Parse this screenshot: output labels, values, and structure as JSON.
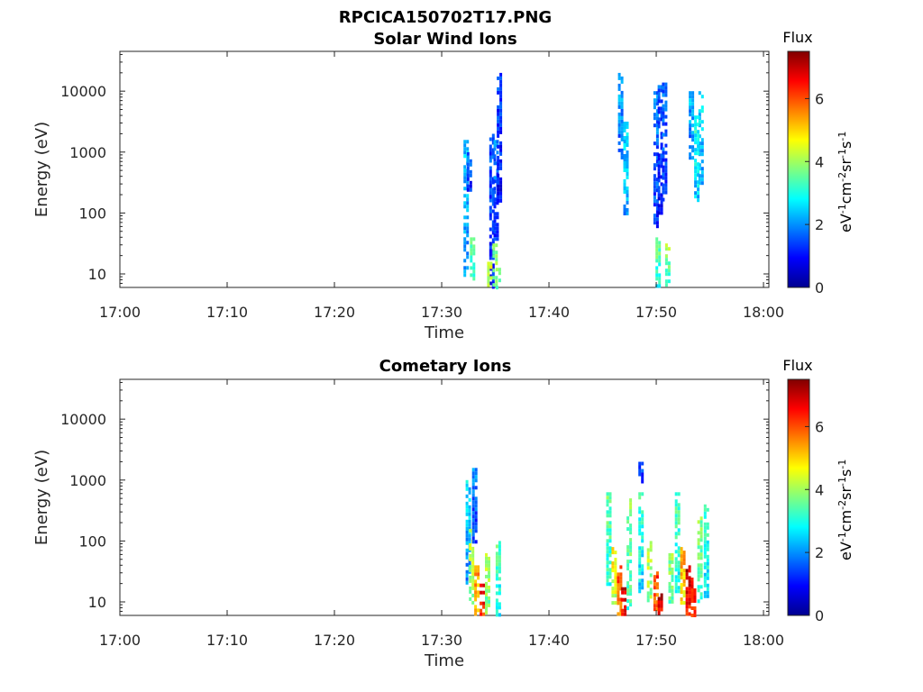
{
  "figure_title": "RPCICA150702T17.PNG",
  "colorbar": {
    "title": "Flux",
    "unit_parts": [
      "eV",
      "-1",
      "cm",
      "-2",
      "sr",
      "-1",
      "s",
      "-1"
    ],
    "ticks": [
      "0",
      "2",
      "4",
      "6"
    ],
    "tick_values": [
      0,
      2,
      4,
      6
    ],
    "range": [
      0,
      7.5
    ],
    "colormap": "jet"
  },
  "chart_data": [
    {
      "type": "heatmap",
      "title": "Solar Wind Ions",
      "xlabel": "Time",
      "ylabel": "Energy (eV)",
      "x_ticks": [
        "17:00",
        "17:10",
        "17:20",
        "17:30",
        "17:40",
        "17:50",
        "18:00"
      ],
      "x_tick_minutes": [
        0,
        10,
        20,
        30,
        40,
        50,
        60
      ],
      "xlim_minutes": [
        0,
        60.5
      ],
      "y_scale": "log",
      "y_ticks": [
        "10",
        "100",
        "1000",
        "10000"
      ],
      "y_tick_values": [
        10,
        100,
        1000,
        10000
      ],
      "ylim": [
        6,
        45000
      ],
      "grid": false,
      "cells_note": "flux heatmap; each row = [minute after 17:00, log10 energy low, log10 energy high, flux]",
      "cells": [
        [
          34.6,
          0.8,
          3.3,
          1.0
        ],
        [
          35.0,
          1.6,
          3.2,
          1.3
        ],
        [
          35.3,
          2.2,
          4.3,
          0.9
        ],
        [
          32.2,
          1.0,
          3.2,
          1.9
        ],
        [
          32.8,
          0.9,
          1.6,
          3.0
        ],
        [
          34.9,
          0.8,
          1.5,
          3.4
        ],
        [
          34.4,
          0.8,
          1.2,
          4.0
        ],
        [
          35.2,
          0.8,
          1.1,
          3.0
        ],
        [
          32.5,
          2.4,
          3.0,
          1.1
        ],
        [
          46.6,
          2.9,
          4.3,
          1.6
        ],
        [
          47.1,
          2.0,
          3.5,
          2.0
        ],
        [
          49.9,
          1.8,
          4.0,
          1.3
        ],
        [
          50.3,
          2.0,
          4.1,
          1.0
        ],
        [
          50.7,
          2.2,
          4.2,
          1.2
        ],
        [
          50.1,
          0.8,
          1.6,
          3.0
        ],
        [
          51.0,
          0.8,
          1.5,
          3.3
        ],
        [
          53.2,
          2.9,
          4.0,
          1.7
        ],
        [
          54.1,
          2.5,
          4.0,
          2.1
        ],
        [
          53.7,
          2.2,
          3.6,
          2.4
        ]
      ]
    },
    {
      "type": "heatmap",
      "title": "Cometary Ions",
      "xlabel": "Time",
      "ylabel": "Energy (eV)",
      "x_ticks": [
        "17:00",
        "17:10",
        "17:20",
        "17:30",
        "17:40",
        "17:50",
        "18:00"
      ],
      "x_tick_minutes": [
        0,
        10,
        20,
        30,
        40,
        50,
        60
      ],
      "xlim_minutes": [
        0,
        60.5
      ],
      "y_scale": "log",
      "y_ticks": [
        "10",
        "100",
        "1000",
        "10000"
      ],
      "y_tick_values": [
        10,
        100,
        1000,
        10000
      ],
      "ylim": [
        6,
        45000
      ],
      "grid": false,
      "cells_note": "flux heatmap; each row = [minute after 17:00, log10 energy low, log10 energy high, flux]",
      "cells": [
        [
          32.4,
          1.3,
          3.0,
          2.0
        ],
        [
          32.7,
          1.0,
          2.2,
          3.8
        ],
        [
          33.2,
          0.8,
          1.6,
          5.0
        ],
        [
          33.7,
          0.8,
          1.3,
          6.2
        ],
        [
          34.2,
          0.8,
          1.8,
          3.6
        ],
        [
          35.2,
          0.8,
          2.0,
          2.8
        ],
        [
          33.0,
          2.0,
          3.2,
          1.3
        ],
        [
          45.5,
          1.3,
          2.8,
          3.0
        ],
        [
          46.0,
          1.0,
          1.9,
          4.2
        ],
        [
          46.5,
          0.8,
          1.6,
          5.6
        ],
        [
          46.9,
          0.8,
          1.3,
          6.4
        ],
        [
          47.4,
          0.9,
          2.7,
          3.2
        ],
        [
          48.5,
          1.2,
          2.8,
          2.6
        ],
        [
          49.3,
          1.0,
          2.0,
          3.8
        ],
        [
          49.9,
          0.8,
          1.5,
          5.6
        ],
        [
          50.3,
          0.8,
          1.2,
          6.4
        ],
        [
          51.3,
          1.0,
          1.8,
          3.4
        ],
        [
          51.9,
          1.2,
          2.8,
          2.8
        ],
        [
          52.4,
          1.0,
          1.9,
          4.8
        ],
        [
          52.9,
          0.8,
          1.6,
          6.4
        ],
        [
          53.4,
          0.8,
          1.4,
          6.0
        ],
        [
          54.0,
          1.0,
          2.4,
          3.2
        ],
        [
          54.6,
          1.1,
          2.6,
          2.6
        ],
        [
          48.5,
          3.0,
          3.3,
          1.0
        ]
      ]
    }
  ]
}
